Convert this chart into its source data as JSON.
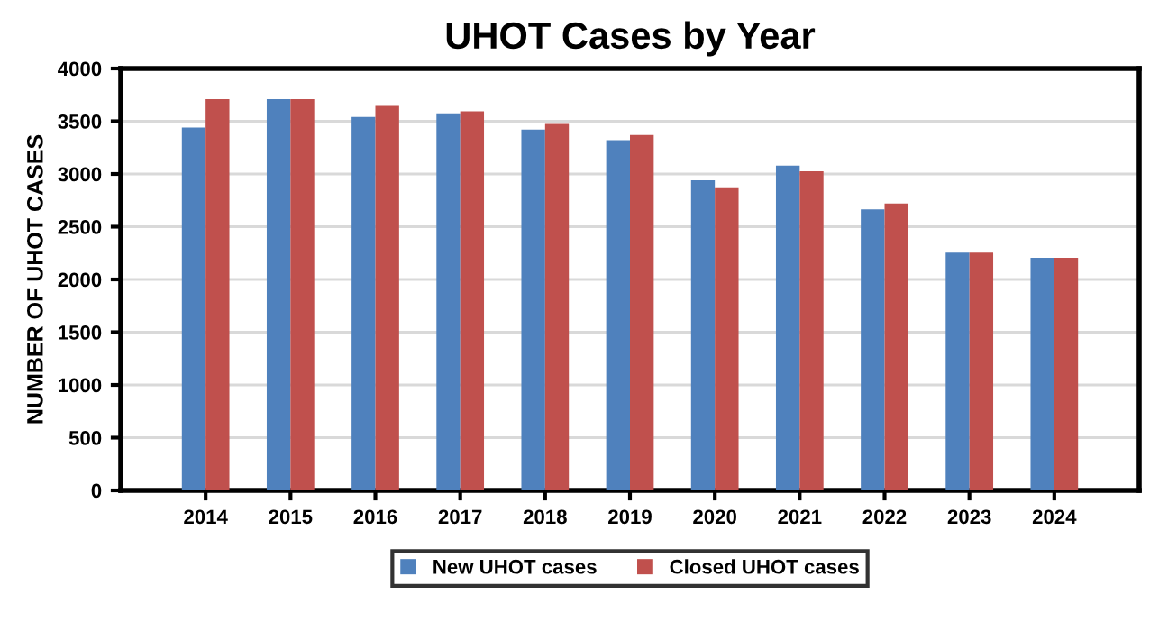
{
  "chart_data": {
    "type": "bar",
    "title": "UHOT Cases by Year",
    "ylabel": "NUMBER OF UHOT CASES",
    "categories": [
      "2014",
      "2015",
      "2016",
      "2017",
      "2018",
      "2019",
      "2020",
      "2021",
      "2022",
      "2023",
      "2024"
    ],
    "series": [
      {
        "name": "New UHOT cases",
        "color": "#4f81bd",
        "values": [
          3440,
          3710,
          3540,
          3575,
          3420,
          3320,
          2940,
          3080,
          2665,
          2255,
          2205
        ]
      },
      {
        "name": "Closed UHOT cases",
        "color": "#c0504d",
        "values": [
          3710,
          3710,
          3645,
          3595,
          3475,
          3370,
          2875,
          3025,
          2720,
          2255,
          2205
        ]
      }
    ],
    "ylim": [
      0,
      4000
    ],
    "yticks": [
      0,
      500,
      1000,
      1500,
      2000,
      2500,
      3000,
      3500,
      4000
    ],
    "grid": "y",
    "legend": "bottom"
  }
}
